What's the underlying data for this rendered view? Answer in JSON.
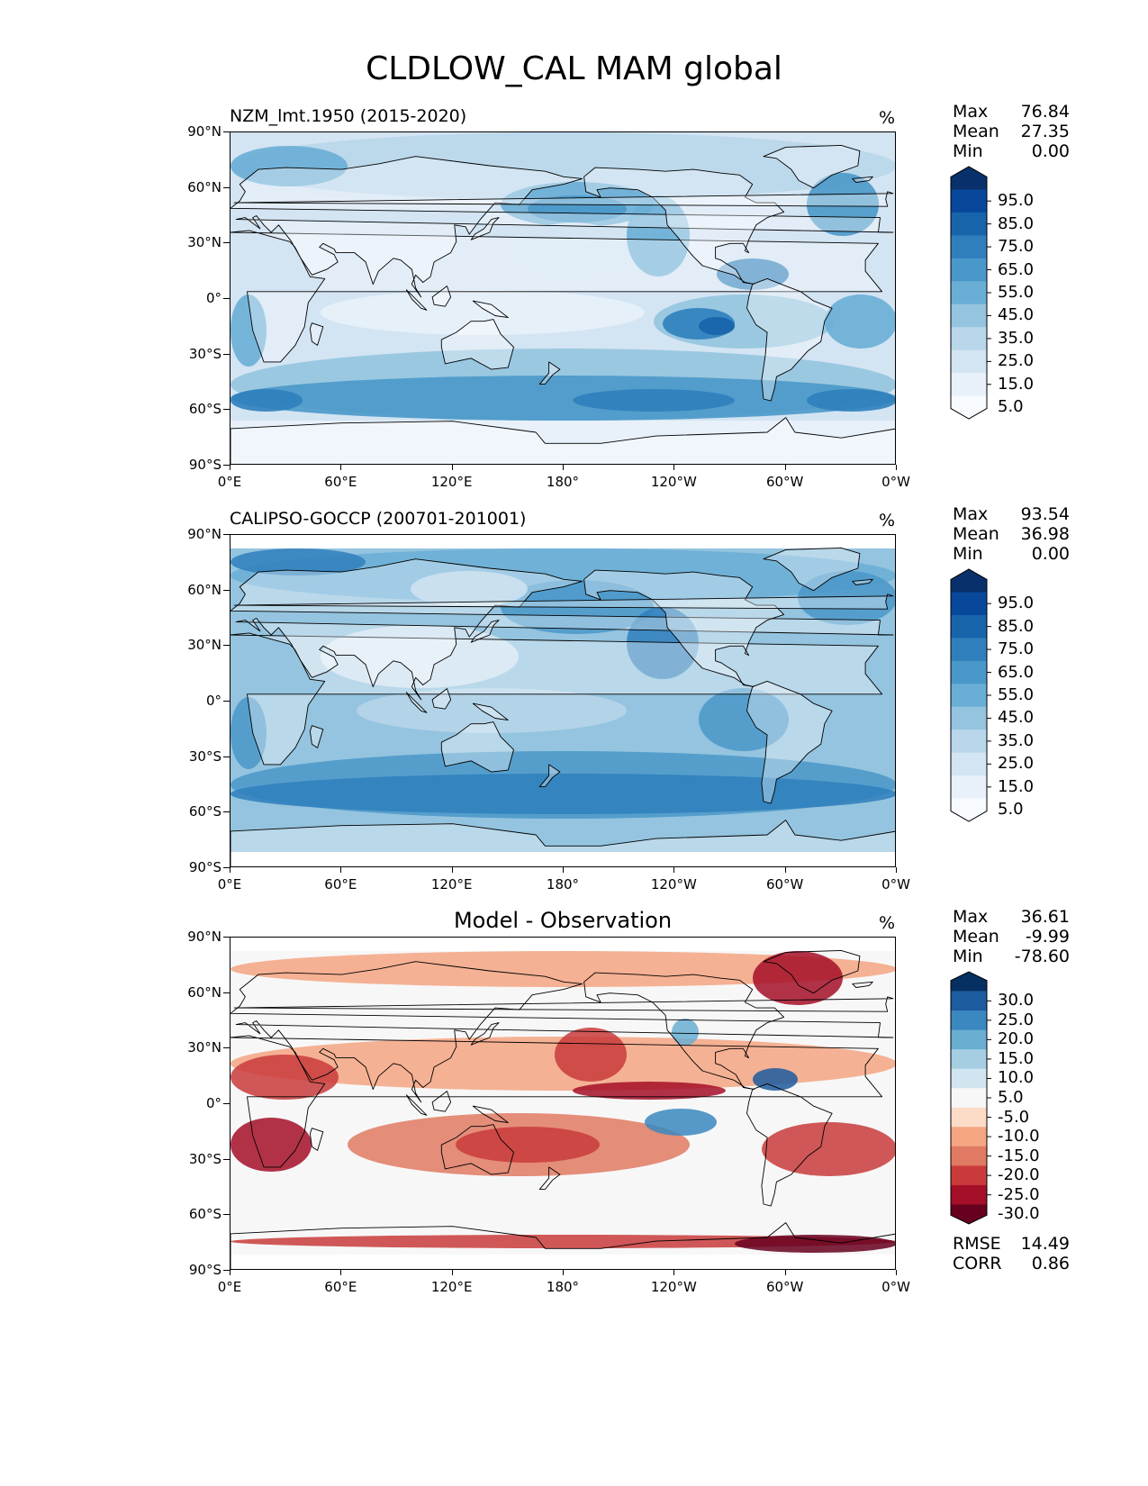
{
  "title": "CLDLOW_CAL MAM global",
  "axis": {
    "lat_labels": [
      "90°N",
      "60°N",
      "30°N",
      "0°",
      "30°S",
      "60°S",
      "90°S"
    ],
    "lon_labels": [
      "0°E",
      "60°E",
      "120°E",
      "180°",
      "120°W",
      "60°W",
      "0°W"
    ]
  },
  "panels": [
    {
      "title": "NZM_lmt.1950 (2015-2020)",
      "units": "%",
      "stats": [
        {
          "label": "Max",
          "value": "76.84"
        },
        {
          "label": "Mean",
          "value": "27.35"
        },
        {
          "label": "Min",
          "value": "0.00"
        }
      ],
      "colorbar": {
        "labels": [
          "95.0",
          "85.0",
          "75.0",
          "65.0",
          "55.0",
          "45.0",
          "35.0",
          "25.0",
          "15.0",
          "5.0"
        ],
        "colors": [
          "#08306b",
          "#08489a",
          "#1764ab",
          "#2f7fbc",
          "#4a98c9",
          "#6aaed6",
          "#94c4df",
          "#b9d6ea",
          "#d3e4f3",
          "#e8f1fa",
          "#f7fbff"
        ]
      }
    },
    {
      "title": "CALIPSO-GOCCP (200701-201001)",
      "units": "%",
      "stats": [
        {
          "label": "Max",
          "value": "93.54"
        },
        {
          "label": "Mean",
          "value": "36.98"
        },
        {
          "label": "Min",
          "value": "0.00"
        }
      ],
      "colorbar": {
        "labels": [
          "95.0",
          "85.0",
          "75.0",
          "65.0",
          "55.0",
          "45.0",
          "35.0",
          "25.0",
          "15.0",
          "5.0"
        ],
        "colors": [
          "#08306b",
          "#08489a",
          "#1764ab",
          "#2f7fbc",
          "#4a98c9",
          "#6aaed6",
          "#94c4df",
          "#b9d6ea",
          "#d3e4f3",
          "#e8f1fa",
          "#f7fbff"
        ]
      }
    },
    {
      "title": "Model - Observation",
      "units": "%",
      "stats": [
        {
          "label": "Max",
          "value": "36.61"
        },
        {
          "label": "Mean",
          "value": "-9.99"
        },
        {
          "label": "Min",
          "value": "-78.60"
        }
      ],
      "colorbar": {
        "labels": [
          "30.0",
          "25.0",
          "20.0",
          "15.0",
          "10.0",
          "5.0",
          "-5.0",
          "-10.0",
          "-15.0",
          "-20.0",
          "-25.0",
          "-30.0"
        ],
        "colors": [
          "#053061",
          "#1c5c9f",
          "#3a88bf",
          "#6aaed2",
          "#a6cee3",
          "#d1e5f0",
          "#f7f7f7",
          "#fcdbc7",
          "#f4a582",
          "#e07a63",
          "#c93b3b",
          "#a50f28",
          "#67001f"
        ]
      },
      "metrics": [
        {
          "label": "RMSE",
          "value": "14.49"
        },
        {
          "label": "CORR",
          "value": "0.86"
        }
      ]
    }
  ],
  "colors": {
    "land_outline": "#000000",
    "model_ocean": "#7fb2d8",
    "obs_ocean": "#6fa7d3",
    "diff_neutral": "#f4f2f2"
  }
}
